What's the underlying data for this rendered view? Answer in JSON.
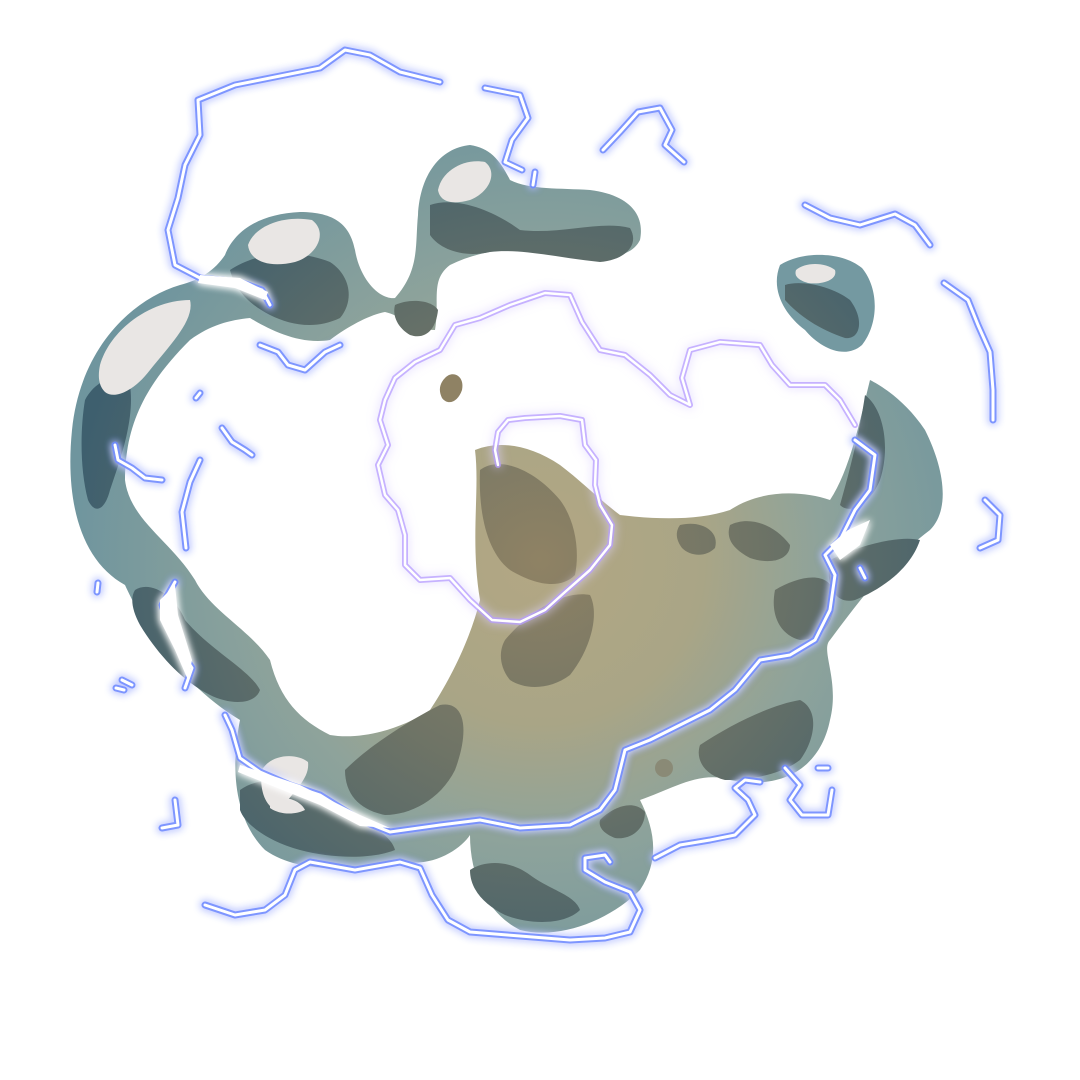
{
  "effect": {
    "colors": {
      "background": "#ffffff",
      "cloud_light": "#7e9fa6",
      "cloud_mid": "#6f8f98",
      "cloud_dark": "#3e5f6e",
      "cloud_center": "#b3a783",
      "cloud_center_dark": "#8f8264",
      "highlight": "#e9e6e4",
      "lightning_core": "#ffffff",
      "lightning_glow": "#5a7cff",
      "lightning_glow_inner": "#b59bff"
    }
  }
}
